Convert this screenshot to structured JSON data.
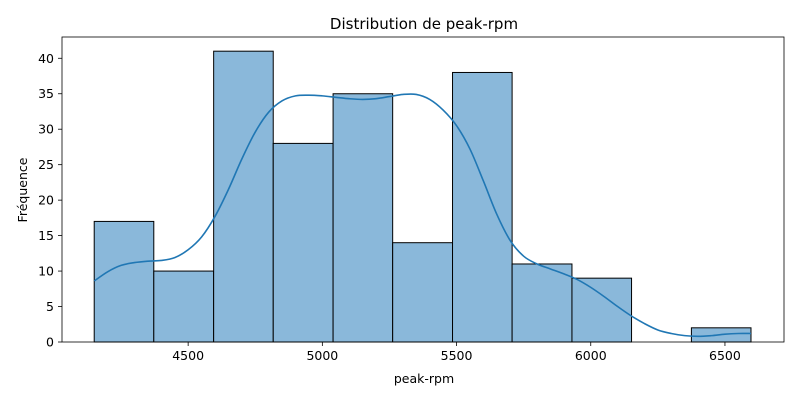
{
  "chart_data": {
    "type": "bar",
    "subtype": "histogram-with-kde",
    "title": "Distribution de peak-rpm",
    "xlabel": "peak-rpm",
    "ylabel": "Fréquence",
    "xlim": [
      4030,
      6720
    ],
    "ylim": [
      0,
      43
    ],
    "xticks": [
      4500,
      5000,
      5500,
      6000,
      6500
    ],
    "yticks": [
      0,
      5,
      10,
      15,
      20,
      25,
      30,
      35,
      40
    ],
    "bins": [
      {
        "start": 4150,
        "end": 4372,
        "count": 17
      },
      {
        "start": 4372,
        "end": 4595,
        "count": 10
      },
      {
        "start": 4595,
        "end": 4817,
        "count": 41
      },
      {
        "start": 4817,
        "end": 5040,
        "count": 28
      },
      {
        "start": 5040,
        "end": 5262,
        "count": 35
      },
      {
        "start": 5262,
        "end": 5485,
        "count": 14
      },
      {
        "start": 5485,
        "end": 5707,
        "count": 38
      },
      {
        "start": 5707,
        "end": 5930,
        "count": 11
      },
      {
        "start": 5930,
        "end": 6152,
        "count": 9
      },
      {
        "start": 6152,
        "end": 6375,
        "count": 0
      },
      {
        "start": 6375,
        "end": 6597,
        "count": 2
      }
    ],
    "kde": {
      "x": [
        4150,
        4200,
        4250,
        4300,
        4350,
        4400,
        4450,
        4500,
        4550,
        4600,
        4650,
        4700,
        4750,
        4800,
        4850,
        4900,
        4950,
        5000,
        5050,
        5100,
        5150,
        5200,
        5250,
        5300,
        5350,
        5400,
        5450,
        5500,
        5550,
        5600,
        5650,
        5700,
        5750,
        5800,
        5850,
        5900,
        5950,
        6000,
        6050,
        6100,
        6150,
        6200,
        6250,
        6300,
        6350,
        6400,
        6450,
        6500,
        6550,
        6597
      ],
      "y": [
        8.6,
        9.9,
        10.8,
        11.2,
        11.4,
        11.5,
        11.9,
        13.0,
        14.8,
        17.7,
        21.5,
        25.8,
        29.6,
        32.4,
        34.0,
        34.7,
        34.8,
        34.7,
        34.5,
        34.3,
        34.2,
        34.3,
        34.6,
        34.9,
        34.9,
        34.2,
        32.7,
        30.5,
        27.2,
        22.7,
        18.0,
        14.3,
        12.1,
        11.0,
        10.3,
        9.6,
        8.8,
        7.7,
        6.4,
        5.0,
        3.7,
        2.6,
        1.7,
        1.2,
        0.9,
        0.8,
        0.9,
        1.1,
        1.2,
        1.2
      ]
    },
    "colors": {
      "bar_fill": "#8ab8da",
      "bar_edge": "#000000",
      "kde_line": "#2077b4",
      "axes": "#000000",
      "background": "#ffffff"
    },
    "grid": false,
    "legend": "none"
  }
}
